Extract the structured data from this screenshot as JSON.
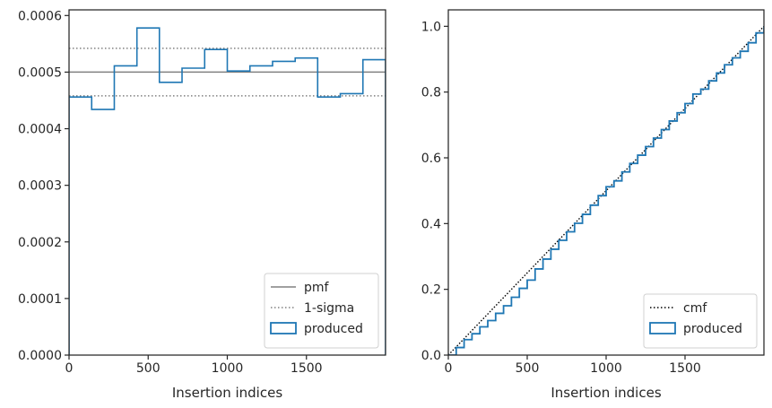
{
  "chart_data": [
    {
      "type": "histogram",
      "xlabel": "Insertion indices",
      "ylabel": "",
      "xlim": [
        0,
        2000
      ],
      "ylim": [
        0,
        0.00061
      ],
      "x_ticks": [
        0,
        500,
        1000,
        1500
      ],
      "x_tick_labels": [
        "0",
        "500",
        "1000",
        "1500"
      ],
      "y_ticks": [
        0,
        0.0001,
        0.0002,
        0.0003,
        0.0004,
        0.0005,
        0.0006
      ],
      "y_tick_labels": [
        "0.0000",
        "0.0001",
        "0.0002",
        "0.0003",
        "0.0004",
        "0.0005",
        "0.0006"
      ],
      "reference_lines": [
        {
          "name": "pmf",
          "y": 0.0005,
          "style": "solid",
          "color": "#808080"
        },
        {
          "name": "1-sigma",
          "y": 0.000542,
          "style": "dotted",
          "color": "#808080"
        },
        {
          "name": "1-sigma",
          "y": 0.000458,
          "style": "dotted",
          "color": "#808080"
        }
      ],
      "series": [
        {
          "name": "produced",
          "color": "#1f77b4",
          "bin_edges": [
            0,
            143,
            286,
            429,
            571,
            714,
            857,
            1000,
            1143,
            1286,
            1429,
            1571,
            1714,
            1857,
            2000
          ],
          "values": [
            0.000456,
            0.000434,
            0.000511,
            0.000578,
            0.000482,
            0.000507,
            0.00054,
            0.000502,
            0.000511,
            0.000519,
            0.000525,
            0.000456,
            0.000462,
            0.000522
          ]
        }
      ],
      "legend": {
        "position": "lower-right",
        "entries": [
          {
            "label": "pmf",
            "style": "solid",
            "color": "#808080"
          },
          {
            "label": "1-sigma",
            "style": "dotted",
            "color": "#808080"
          },
          {
            "label": "produced",
            "style": "patch",
            "color": "#1f77b4"
          }
        ]
      }
    },
    {
      "type": "line",
      "xlabel": "Insertion indices",
      "ylabel": "",
      "xlim": [
        0,
        2000
      ],
      "ylim": [
        0,
        1.05
      ],
      "x_ticks": [
        0,
        500,
        1000,
        1500
      ],
      "x_tick_labels": [
        "0",
        "500",
        "1000",
        "1500"
      ],
      "y_ticks": [
        0,
        0.2,
        0.4,
        0.6,
        0.8,
        1.0
      ],
      "y_tick_labels": [
        "0.0",
        "0.2",
        "0.4",
        "0.6",
        "0.8",
        "1.0"
      ],
      "series": [
        {
          "name": "cmf",
          "style": "dotted",
          "color": "#000000",
          "x": [
            0,
            2000
          ],
          "y": [
            0,
            1.0
          ]
        },
        {
          "name": "produced",
          "style": "step",
          "color": "#1f77b4",
          "x": [
            0,
            50,
            100,
            150,
            200,
            250,
            300,
            350,
            400,
            450,
            500,
            550,
            600,
            650,
            700,
            750,
            800,
            850,
            900,
            950,
            1000,
            1050,
            1100,
            1150,
            1200,
            1250,
            1300,
            1350,
            1400,
            1450,
            1500,
            1550,
            1600,
            1650,
            1700,
            1750,
            1800,
            1850,
            1900,
            1950,
            2000
          ],
          "y": [
            0,
            0.023,
            0.047,
            0.065,
            0.086,
            0.105,
            0.127,
            0.15,
            0.176,
            0.203,
            0.228,
            0.262,
            0.292,
            0.322,
            0.349,
            0.375,
            0.401,
            0.428,
            0.456,
            0.485,
            0.512,
            0.53,
            0.557,
            0.583,
            0.608,
            0.634,
            0.66,
            0.686,
            0.712,
            0.737,
            0.765,
            0.794,
            0.809,
            0.834,
            0.858,
            0.883,
            0.904,
            0.924,
            0.95,
            0.98,
            1.0
          ]
        }
      ],
      "legend": {
        "position": "lower-right",
        "entries": [
          {
            "label": "cmf",
            "style": "dotted",
            "color": "#000000"
          },
          {
            "label": "produced",
            "style": "patch",
            "color": "#1f77b4"
          }
        ]
      }
    }
  ]
}
